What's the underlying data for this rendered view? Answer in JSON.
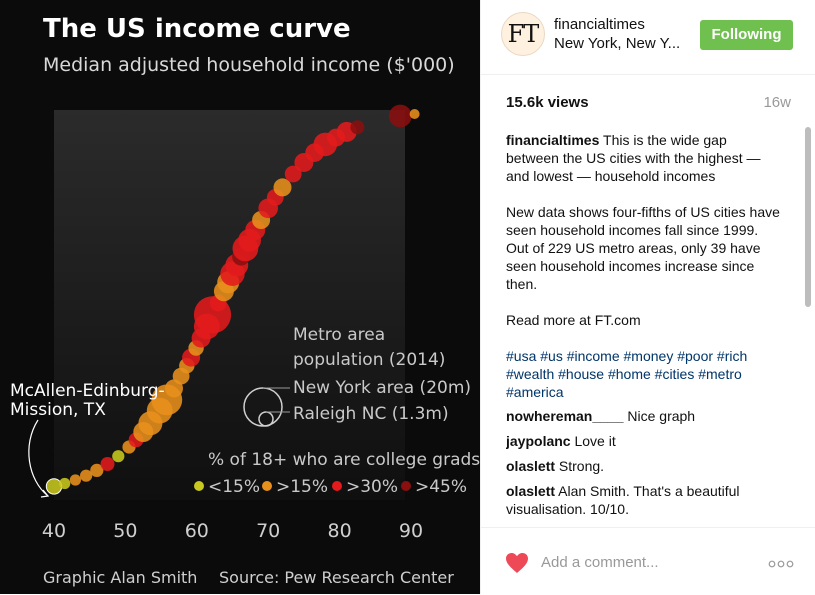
{
  "chart_data": {
    "type": "scatter",
    "title": "The US income curve",
    "subtitle": "Median adjusted household income ($'000)",
    "xlabel": "Median adjusted household income ($'000)",
    "ylabel": "",
    "xlim": [
      40,
      92
    ],
    "x_ticks": [
      "40",
      "50",
      "60",
      "70",
      "80",
      "90"
    ],
    "annotation_label": "McAllen-Edinburg-\nMission, TX",
    "annotation_lines": [
      "McAllen-Edinburg-",
      "Mission, TX"
    ],
    "size_legend": {
      "title_lines": [
        "Metro area",
        "population (2014)"
      ],
      "entries": [
        "New York area (20m)",
        "Raleigh NC (1.3m)"
      ]
    },
    "color_legend": {
      "title": "% of 18+ who are college grads",
      "items": [
        {
          "label": "<15%",
          "color": "#c8c81e"
        },
        {
          "label": ">15%",
          "color": "#e8901c"
        },
        {
          "label": ">30%",
          "color": "#e41a1c"
        },
        {
          "label": ">45%",
          "color": "#8a0f0f"
        }
      ]
    },
    "footer_left": "Graphic Alan Smith",
    "footer_right": "Source: Pew Research Center",
    "series": [
      {
        "name": "metro areas",
        "points": [
          {
            "income": 40,
            "college": "<15%",
            "pop": 0.8
          },
          {
            "income": 41.5,
            "college": "<15%",
            "pop": 0.3
          },
          {
            "income": 43,
            "college": ">15%",
            "pop": 0.3
          },
          {
            "income": 44.5,
            "college": ">15%",
            "pop": 0.4
          },
          {
            "income": 46,
            "college": ">15%",
            "pop": 0.5
          },
          {
            "income": 47.5,
            "college": ">30%",
            "pop": 0.6
          },
          {
            "income": 49,
            "college": "<15%",
            "pop": 0.4
          },
          {
            "income": 50.5,
            "college": ">15%",
            "pop": 0.5
          },
          {
            "income": 51.5,
            "college": ">30%",
            "pop": 0.7
          },
          {
            "income": 52.5,
            "college": ">15%",
            "pop": 1.6
          },
          {
            "income": 53.5,
            "college": ">15%",
            "pop": 2.5
          },
          {
            "income": 54.8,
            "college": ">15%",
            "pop": 3.0
          },
          {
            "income": 55.8,
            "college": ">15%",
            "pop": 4.5
          },
          {
            "income": 56.8,
            "college": ">15%",
            "pop": 1.2
          },
          {
            "income": 57.8,
            "college": ">15%",
            "pop": 1.0
          },
          {
            "income": 58.6,
            "college": ">15%",
            "pop": 0.8
          },
          {
            "income": 59.2,
            "college": ">30%",
            "pop": 1.2
          },
          {
            "income": 59.9,
            "college": ">15%",
            "pop": 0.8
          },
          {
            "income": 60.6,
            "college": ">30%",
            "pop": 1.4
          },
          {
            "income": 61.4,
            "college": ">30%",
            "pop": 3.0
          },
          {
            "income": 62.2,
            "college": ">30%",
            "pop": 7.0
          },
          {
            "income": 63.0,
            "college": ">30%",
            "pop": 1.0
          },
          {
            "income": 63.8,
            "college": ">15%",
            "pop": 1.6
          },
          {
            "income": 64.4,
            "college": ">15%",
            "pop": 2.0
          },
          {
            "income": 65.0,
            "college": ">30%",
            "pop": 2.6
          },
          {
            "income": 65.6,
            "college": ">30%",
            "pop": 2.2
          },
          {
            "income": 66.2,
            "college": ">45%",
            "pop": 1.2
          },
          {
            "income": 66.8,
            "college": ">30%",
            "pop": 3.0
          },
          {
            "income": 67.4,
            "college": ">30%",
            "pop": 2.2
          },
          {
            "income": 68.2,
            "college": ">30%",
            "pop": 1.6
          },
          {
            "income": 69.0,
            "college": ">15%",
            "pop": 1.2
          },
          {
            "income": 70.0,
            "college": ">30%",
            "pop": 1.5
          },
          {
            "income": 71.0,
            "college": ">30%",
            "pop": 1.0
          },
          {
            "income": 72.0,
            "college": ">15%",
            "pop": 1.2
          },
          {
            "income": 73.5,
            "college": ">30%",
            "pop": 1.0
          },
          {
            "income": 75.0,
            "college": ">30%",
            "pop": 1.4
          },
          {
            "income": 76.5,
            "college": ">30%",
            "pop": 1.3
          },
          {
            "income": 78.0,
            "college": ">30%",
            "pop": 2.4
          },
          {
            "income": 79.5,
            "college": ">30%",
            "pop": 1.2
          },
          {
            "income": 81.0,
            "college": ">30%",
            "pop": 1.6
          },
          {
            "income": 82.5,
            "college": ">45%",
            "pop": 0.6
          },
          {
            "income": 88.5,
            "college": ">45%",
            "pop": 2.2
          },
          {
            "income": 90.5,
            "college": ">15%",
            "pop": 0.2
          }
        ]
      }
    ]
  },
  "post": {
    "username": "financialtimes",
    "location": "New York, New Y...",
    "avatar_text": "FT",
    "follow_label": "Following",
    "views": "15.6k views",
    "age": "16w",
    "caption_user": "financialtimes",
    "caption_text": "This is the wide gap between the US cities with the highest — and lowest — household incomes",
    "caption_p2": "New data shows four-fifths of US cities have seen household incomes fall since 1999. Out of 229 US metro areas, only 39 have seen household incomes increase since then.",
    "caption_p3": "Read more at FT.com",
    "hashtags": "#usa #us #income #money #poor #rich #wealth #house #home #cities #metro #america",
    "comments": [
      {
        "user": "nowhereman____",
        "text": "Nice graph"
      },
      {
        "user": "jaypolanc",
        "text": "Love it"
      },
      {
        "user": "olaslett",
        "text": "Strong."
      },
      {
        "user": "olaslett",
        "text": "Alan Smith. That's a beautiful visualisation. 10/10."
      }
    ],
    "add_comment_placeholder": "Add a comment...",
    "colors": {
      "follow": "#70c050",
      "link": "#003569",
      "heart": "#ed4956"
    }
  }
}
